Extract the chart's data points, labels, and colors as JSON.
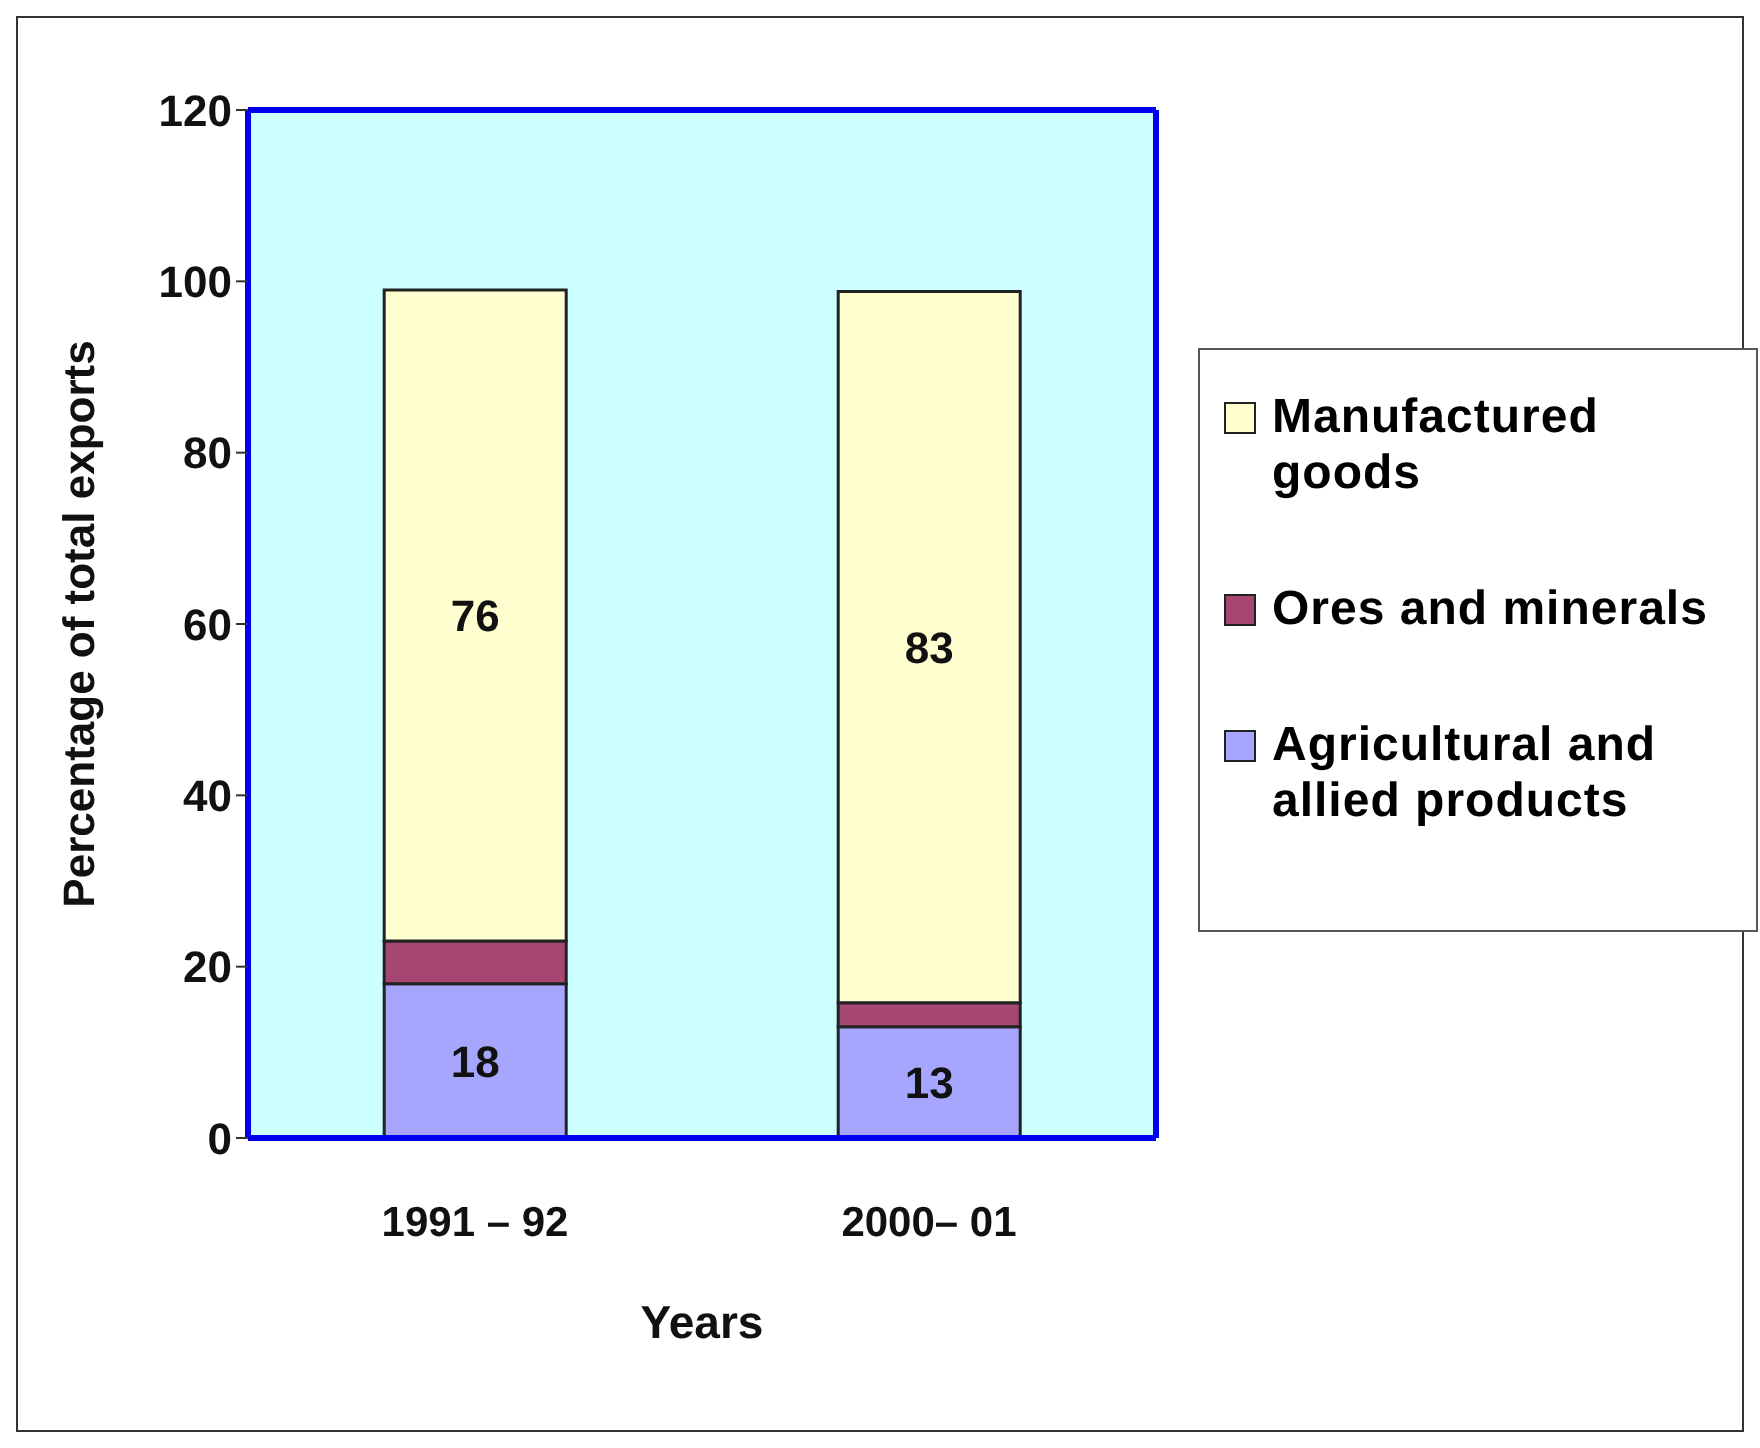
{
  "chart_data": {
    "type": "bar",
    "stacked": true,
    "categories": [
      "1991 – 92",
      "2000– 01"
    ],
    "xlabel": "Years",
    "ylabel": "Percentage of total exports",
    "ylim": [
      0,
      120
    ],
    "yticks": [
      0,
      20,
      40,
      60,
      80,
      100,
      120
    ],
    "grid": false,
    "legend": "right",
    "series": [
      {
        "name": "Agricultural and allied products",
        "color": "#a6a6ff",
        "values": [
          18,
          13
        ],
        "value_labels": [
          "18",
          "13"
        ]
      },
      {
        "name": "Ores and minerals",
        "color": "#a64672",
        "values": [
          5,
          2.8
        ],
        "value_labels": [
          null,
          null
        ]
      },
      {
        "name": "Manufactured goods",
        "color": "#ffffd0",
        "values": [
          76,
          83
        ],
        "value_labels": [
          "76",
          "83"
        ]
      }
    ]
  }
}
